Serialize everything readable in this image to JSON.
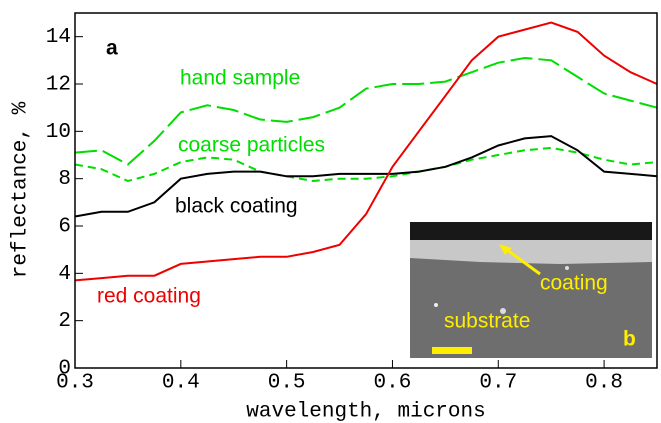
{
  "chart_data": {
    "type": "line",
    "x": [
      0.3,
      0.325,
      0.35,
      0.375,
      0.4,
      0.425,
      0.45,
      0.475,
      0.5,
      0.525,
      0.55,
      0.575,
      0.6,
      0.625,
      0.65,
      0.675,
      0.7,
      0.725,
      0.75,
      0.775,
      0.8,
      0.825,
      0.85
    ],
    "series": [
      {
        "name": "hand sample",
        "color": "#00dd00",
        "style": "long-dash",
        "values": [
          9.1,
          9.2,
          8.6,
          9.6,
          10.8,
          11.1,
          10.9,
          10.5,
          10.4,
          10.6,
          11.0,
          11.8,
          12.0,
          12.0,
          12.1,
          12.5,
          12.9,
          13.1,
          13.0,
          12.3,
          11.6,
          11.3,
          11.0
        ]
      },
      {
        "name": "coarse particles",
        "color": "#00dd00",
        "style": "short-dash",
        "values": [
          8.6,
          8.4,
          7.9,
          8.2,
          8.7,
          8.9,
          8.8,
          8.3,
          8.1,
          7.9,
          8.0,
          8.0,
          8.1,
          8.3,
          8.5,
          8.8,
          9.0,
          9.2,
          9.3,
          9.1,
          8.8,
          8.6,
          8.7
        ]
      },
      {
        "name": "black coating",
        "color": "#000000",
        "style": "solid",
        "values": [
          6.4,
          6.6,
          6.6,
          7.0,
          8.0,
          8.2,
          8.3,
          8.3,
          8.1,
          8.1,
          8.2,
          8.2,
          8.2,
          8.3,
          8.5,
          8.9,
          9.4,
          9.7,
          9.8,
          9.2,
          8.3,
          8.2,
          8.1
        ]
      },
      {
        "name": "red coating",
        "color": "#ee0000",
        "style": "solid",
        "values": [
          3.7,
          3.8,
          3.9,
          3.9,
          4.4,
          4.5,
          4.6,
          4.7,
          4.7,
          4.9,
          5.2,
          6.5,
          8.5,
          10.0,
          11.5,
          13.0,
          14.0,
          14.3,
          14.6,
          14.2,
          13.2,
          12.5,
          12.0
        ]
      }
    ],
    "panel_label": "a",
    "inset_labels": [
      "coating",
      "substrate",
      "b"
    ],
    "x_label": "wavelength, microns",
    "y_label": "reflectance, %",
    "xlim": [
      0.3,
      0.85
    ],
    "ylim": [
      0,
      15
    ],
    "xticks": [
      0.3,
      0.4,
      0.5,
      0.6,
      0.7,
      0.8
    ],
    "yticks": [
      0,
      2,
      4,
      6,
      8,
      10,
      12,
      14
    ]
  }
}
